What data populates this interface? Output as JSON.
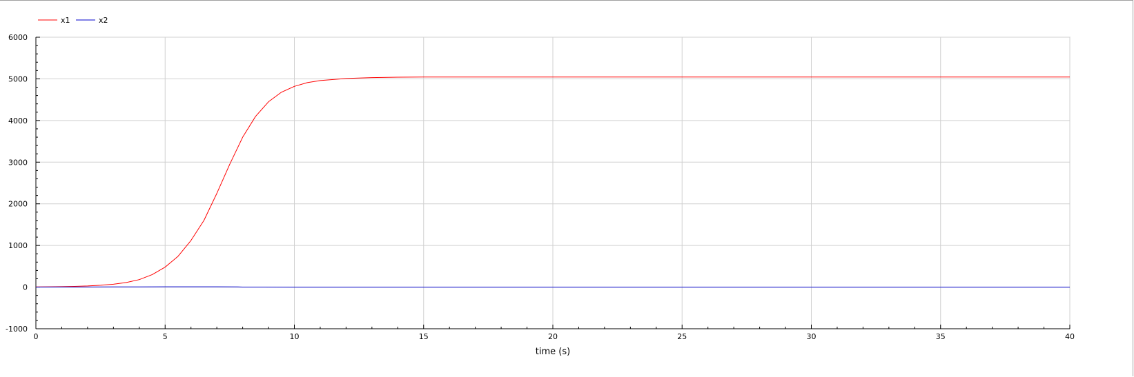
{
  "chart_data": {
    "type": "line",
    "title": "",
    "xlabel": "time (s)",
    "ylabel": "",
    "xlim": [
      0,
      40
    ],
    "ylim": [
      -1000,
      6000
    ],
    "x_ticks": [
      0,
      5,
      10,
      15,
      20,
      25,
      30,
      35,
      40
    ],
    "y_ticks": [
      -1000,
      0,
      1000,
      2000,
      3000,
      4000,
      5000,
      6000
    ],
    "grid": true,
    "legend_position": "top-left",
    "series": [
      {
        "name": "x1",
        "color": "#ff0000",
        "points": [
          [
            0,
            5
          ],
          [
            0.5,
            8
          ],
          [
            1,
            12
          ],
          [
            1.5,
            18
          ],
          [
            2,
            28
          ],
          [
            2.5,
            45
          ],
          [
            3,
            70
          ],
          [
            3.5,
            110
          ],
          [
            4,
            180
          ],
          [
            4.5,
            300
          ],
          [
            5,
            480
          ],
          [
            5.5,
            740
          ],
          [
            6,
            1120
          ],
          [
            6.5,
            1600
          ],
          [
            7,
            2250
          ],
          [
            7.5,
            2950
          ],
          [
            8,
            3600
          ],
          [
            8.5,
            4100
          ],
          [
            9,
            4450
          ],
          [
            9.5,
            4680
          ],
          [
            10,
            4820
          ],
          [
            10.5,
            4910
          ],
          [
            11,
            4960
          ],
          [
            12,
            5010
          ],
          [
            13,
            5030
          ],
          [
            14,
            5040
          ],
          [
            15,
            5045
          ],
          [
            20,
            5045
          ],
          [
            25,
            5045
          ],
          [
            30,
            5045
          ],
          [
            35,
            5045
          ],
          [
            40,
            5045
          ]
        ]
      },
      {
        "name": "x2",
        "color": "#0000cc",
        "points": [
          [
            0,
            2
          ],
          [
            1,
            3
          ],
          [
            2,
            4
          ],
          [
            3,
            5
          ],
          [
            4,
            6
          ],
          [
            5,
            7
          ],
          [
            6,
            7
          ],
          [
            7,
            7
          ],
          [
            7.8,
            6
          ],
          [
            8,
            1
          ],
          [
            10,
            0
          ],
          [
            20,
            0
          ],
          [
            30,
            0
          ],
          [
            40,
            0
          ]
        ]
      }
    ]
  }
}
